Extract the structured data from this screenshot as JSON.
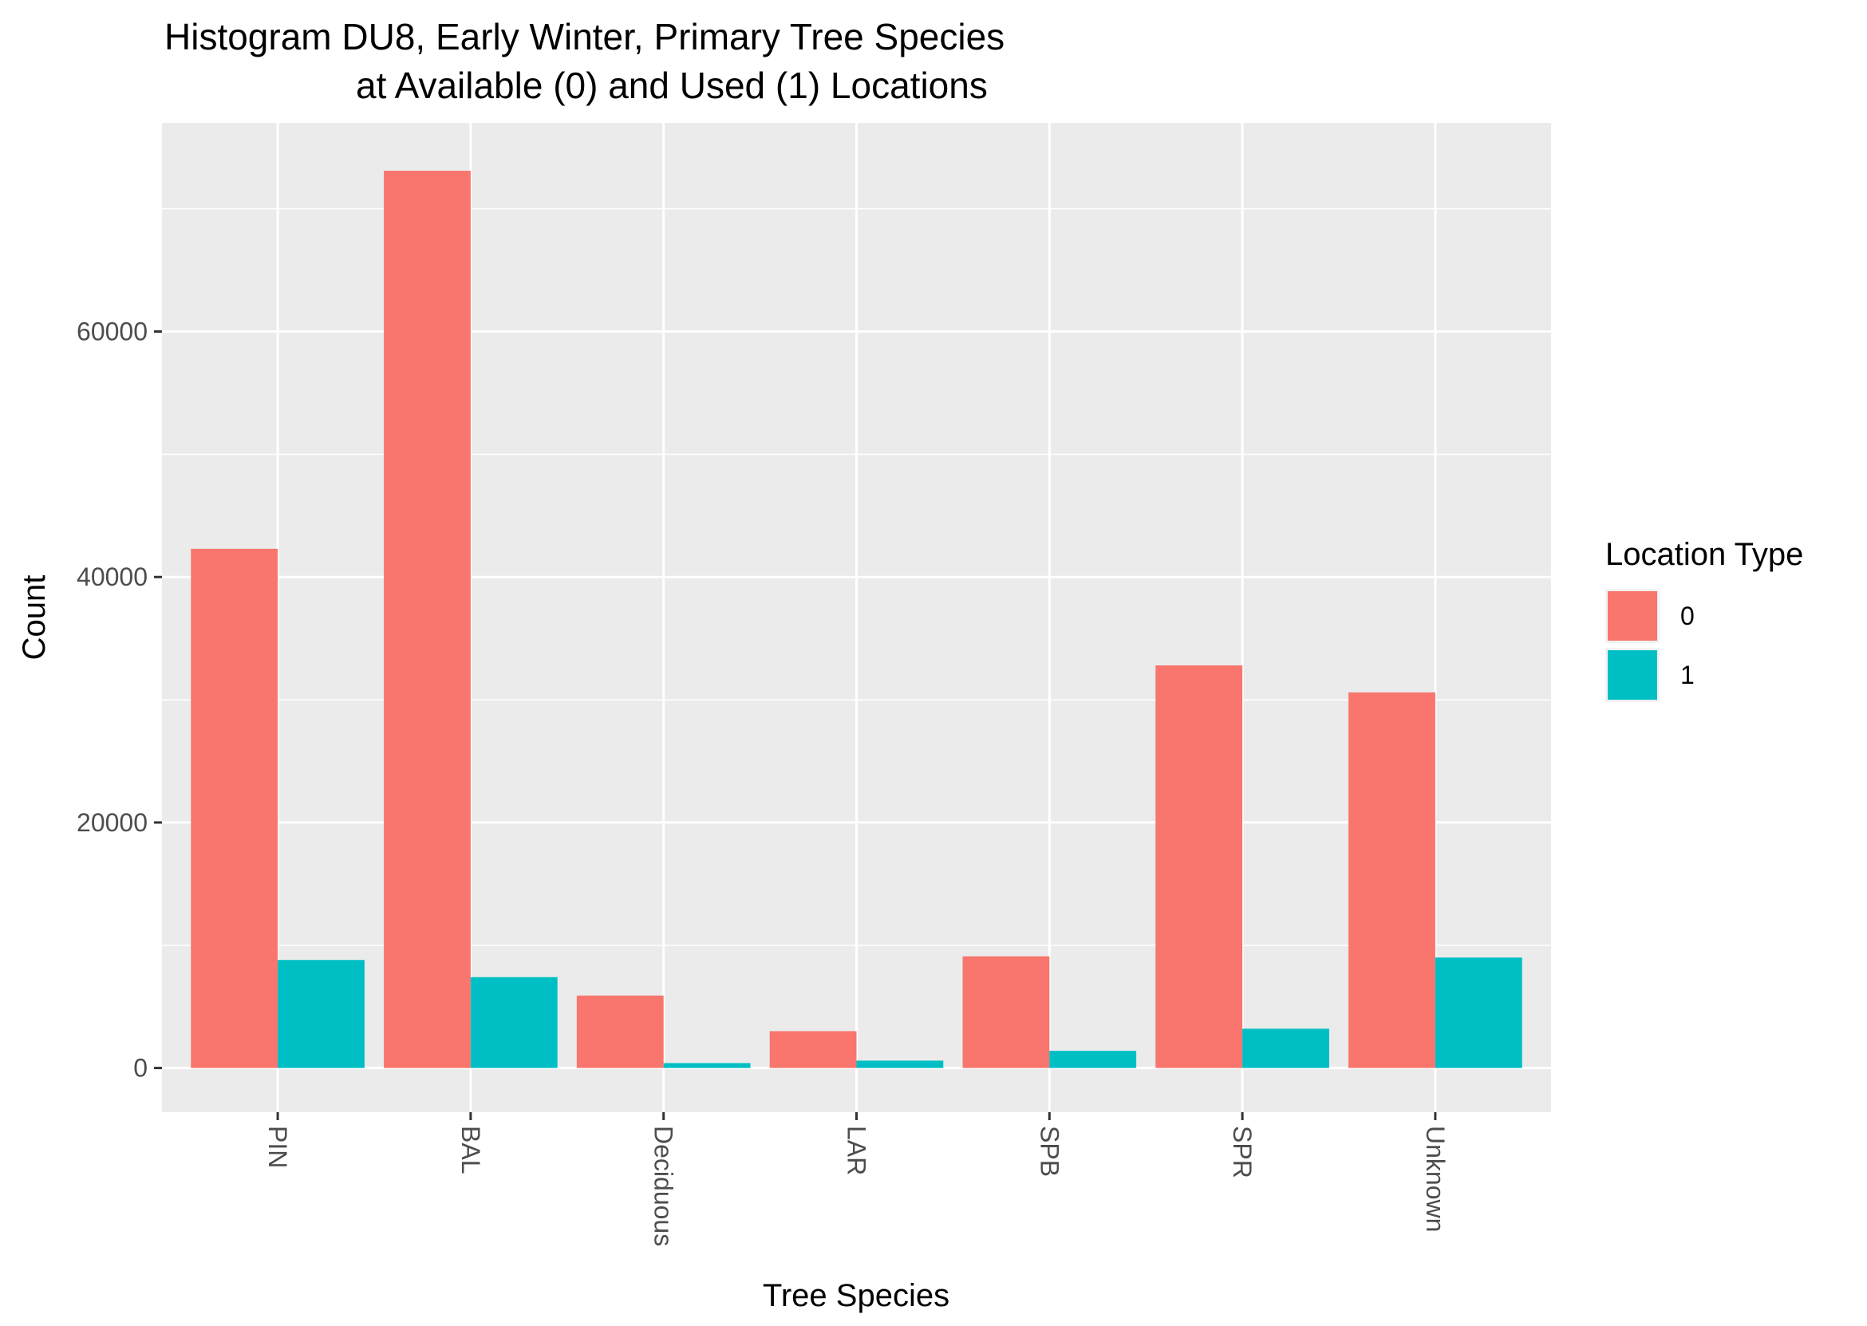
{
  "chart_data": {
    "type": "bar",
    "title_lines": [
      "Histogram DU8, Early Winter, Primary Tree Species",
      "at Available (0) and Used (1) Locations"
    ],
    "xlabel": "Tree Species",
    "ylabel": "Count",
    "categories": [
      "PIN",
      "BAL",
      "Deciduous",
      "LAR",
      "SPB",
      "SPR",
      "Unknown"
    ],
    "series": [
      {
        "name": "0",
        "color": "#F8766D",
        "values": [
          42300,
          73100,
          5900,
          3000,
          9100,
          32800,
          30600
        ]
      },
      {
        "name": "1",
        "color": "#00BFC4",
        "values": [
          8800,
          7400,
          400,
          600,
          1400,
          3200,
          9000
        ]
      }
    ],
    "ylim": [
      -3600,
      77000
    ],
    "yticks": [
      0,
      20000,
      40000,
      60000
    ],
    "ytick_labels": [
      "0",
      "20000",
      "40000",
      "60000"
    ],
    "legend": {
      "title": "Location Type",
      "position": "right"
    },
    "grid": true,
    "panel_color": "#EBEBEB",
    "grid_color": "#FFFFFF"
  }
}
